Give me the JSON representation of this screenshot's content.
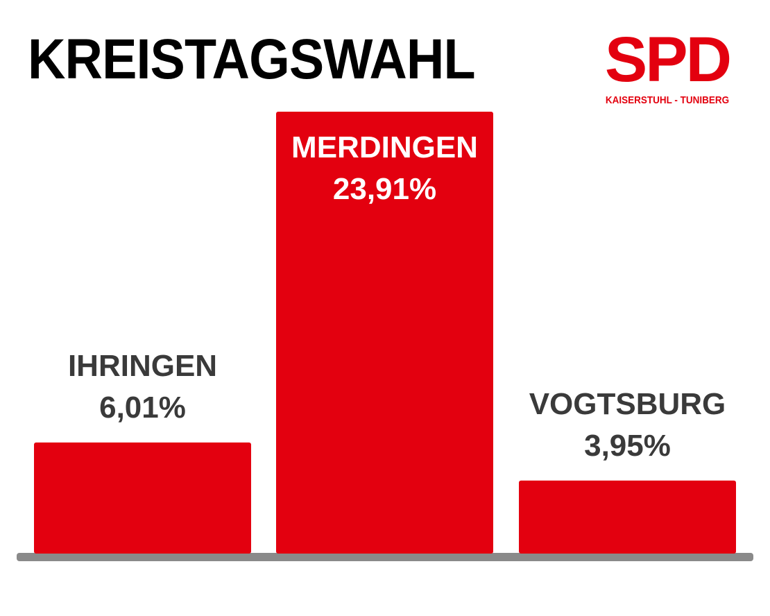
{
  "title": "KREISTAGSWAHL",
  "logo": {
    "mark": "SPD",
    "subtitle": "KAISERSTUHL - TUNIBERG",
    "color": "#e3000f"
  },
  "colors": {
    "bar": "#e3000f",
    "label_dark": "#3a3a3a",
    "label_light": "#ffffff",
    "baseline": "#8a8a8a"
  },
  "chart_data": {
    "type": "bar",
    "title": "KREISTAGSWAHL",
    "categories": [
      "IHRINGEN",
      "MERDINGEN",
      "VOGTSBURG"
    ],
    "values": [
      6.01,
      23.91,
      3.95
    ],
    "value_labels": [
      "6,01%",
      "23,91%",
      "3,95%"
    ],
    "xlabel": "",
    "ylabel": "",
    "ylim": [
      0,
      23.91
    ],
    "grid": false,
    "legend": "none",
    "axes_visible": false
  }
}
